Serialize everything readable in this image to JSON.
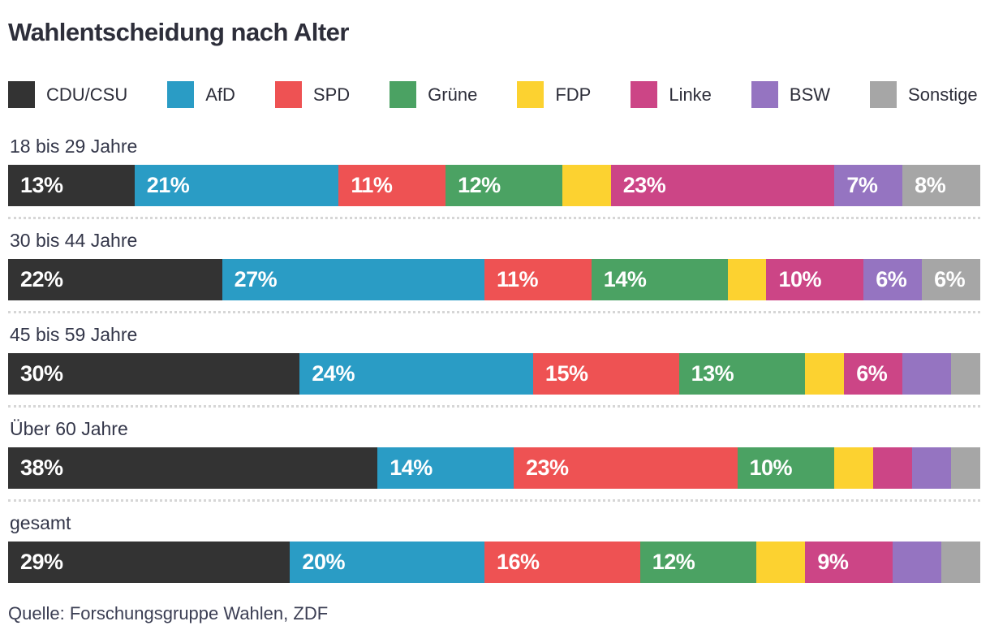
{
  "title": "Wahlentscheidung nach Alter",
  "source": "Quelle: Forschungsgruppe Wahlen, ZDF",
  "chart_data": {
    "type": "bar",
    "variant": "stacked-horizontal",
    "unit": "%",
    "xlim": [
      0,
      100
    ],
    "legend_position": "top",
    "min_label_value": 6,
    "parties": [
      {
        "name": "CDU/CSU",
        "color": "#333333"
      },
      {
        "name": "AfD",
        "color": "#2a9cc5"
      },
      {
        "name": "SPD",
        "color": "#ee5253"
      },
      {
        "name": "Grüne",
        "color": "#4ba263"
      },
      {
        "name": "FDP",
        "color": "#fcd230"
      },
      {
        "name": "Linke",
        "color": "#cc4586"
      },
      {
        "name": "BSW",
        "color": "#9574c1"
      },
      {
        "name": "Sonstige",
        "color": "#a6a6a6"
      }
    ],
    "groups": [
      {
        "label": "18 bis 29 Jahre",
        "values": [
          13,
          21,
          11,
          12,
          5,
          23,
          7,
          8
        ]
      },
      {
        "label": "30 bis 44 Jahre",
        "values": [
          22,
          27,
          11,
          14,
          4,
          10,
          6,
          6
        ]
      },
      {
        "label": "45 bis 59 Jahre",
        "values": [
          30,
          24,
          15,
          13,
          4,
          6,
          5,
          3
        ]
      },
      {
        "label": "Über 60 Jahre",
        "values": [
          38,
          14,
          23,
          10,
          4,
          4,
          4,
          3
        ]
      },
      {
        "label": "gesamt",
        "values": [
          29,
          20,
          16,
          12,
          5,
          9,
          5,
          4
        ]
      }
    ]
  }
}
